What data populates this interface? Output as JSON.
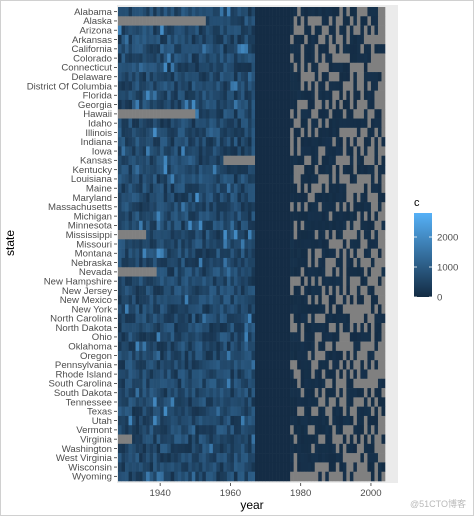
{
  "chart_data": {
    "type": "heatmap",
    "title": "",
    "xlabel": "year",
    "ylabel": "state",
    "x_ticks": [
      1940,
      1960,
      1980,
      2000
    ],
    "xlim": [
      1928,
      2004
    ],
    "states": [
      "Alabama",
      "Alaska",
      "Arizona",
      "Arkansas",
      "California",
      "Colorado",
      "Connecticut",
      "Delaware",
      "District Of Columbia",
      "Florida",
      "Georgia",
      "Hawaii",
      "Idaho",
      "Illinois",
      "Indiana",
      "Iowa",
      "Kansas",
      "Kentucky",
      "Louisiana",
      "Maine",
      "Maryland",
      "Massachusetts",
      "Michigan",
      "Minnesota",
      "Mississippi",
      "Missouri",
      "Montana",
      "Nebraska",
      "Nevada",
      "New Hampshire",
      "New Jersey",
      "New Mexico",
      "New York",
      "North Carolina",
      "North Dakota",
      "Ohio",
      "Oklahoma",
      "Oregon",
      "Pennsylvania",
      "Rhode Island",
      "South Carolina",
      "South Dakota",
      "Tennessee",
      "Texas",
      "Utah",
      "Vermont",
      "Virginia",
      "Washington",
      "West Virginia",
      "Wisconsin",
      "Wyoming"
    ],
    "missing_ranges": {
      "Alaska": [
        [
          1928,
          1953
        ]
      ],
      "Hawaii": [
        [
          1928,
          1950
        ]
      ],
      "Kansas": [
        [
          1958,
          1967
        ]
      ],
      "Mississippi": [
        [
          1928,
          1936
        ]
      ],
      "Nevada": [
        [
          1928,
          1939
        ]
      ],
      "Virginia": [
        [
          1928,
          1932
        ]
      ]
    },
    "legend": {
      "title": "c",
      "ticks": [
        0,
        1000,
        2000
      ],
      "min": 0,
      "max": 2800,
      "low_color": "#132B43",
      "high_color": "#56B1F7"
    },
    "na_color": "#808080",
    "panel_background": "#EBEBEB"
  },
  "watermark": "@51CTO博客"
}
